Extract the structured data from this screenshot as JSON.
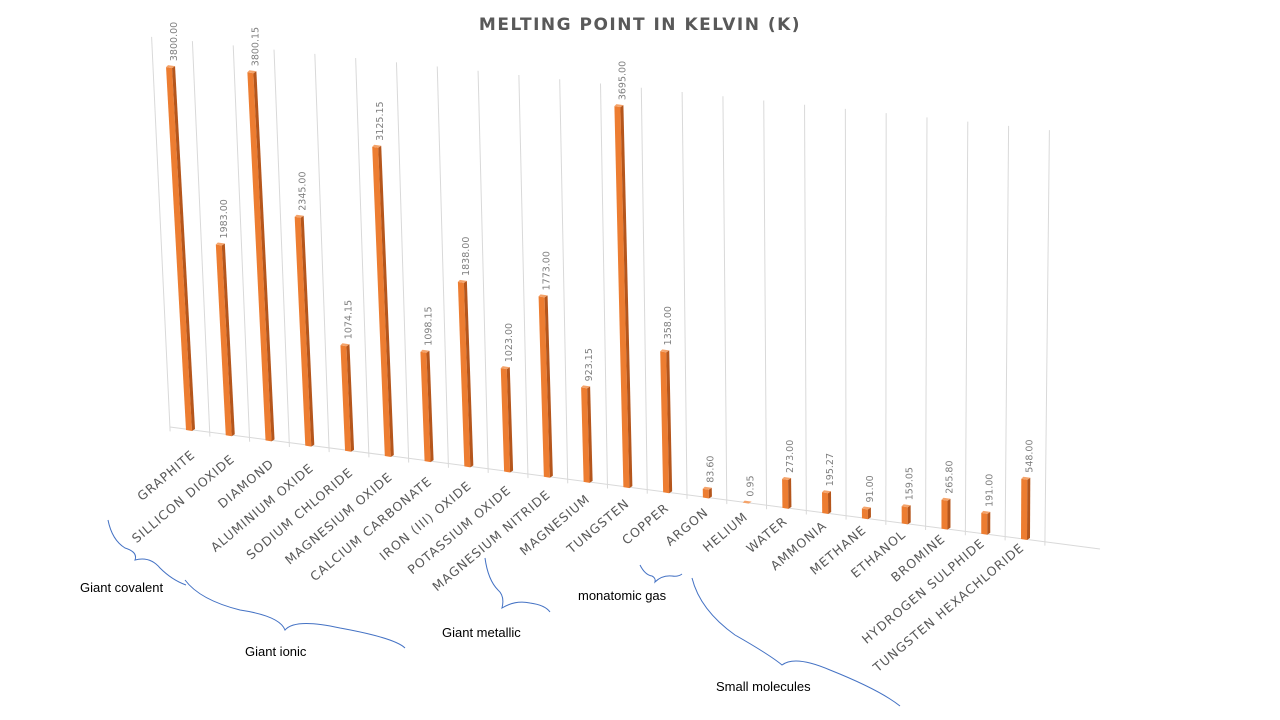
{
  "chart_data": {
    "type": "bar",
    "title": "MELTING POINT IN KELVIN (K)",
    "xlabel": "",
    "ylabel": "",
    "ylim": [
      0,
      4000
    ],
    "grid": true,
    "legend": "none",
    "series_color": "#ED7D31",
    "categories": [
      "GRAPHITE",
      "SILLICON DIOXIDE",
      "DIAMOND",
      "ALUMINIUM OXIDE",
      "SODIUM CHLORIDE",
      "MAGNESIUM OXIDE",
      "CALCIUM CARBONATE",
      "IRON (III) OXIDE",
      "POTASSIUM OXIDE",
      "MAGNESIUM NITRIDE",
      "MAGNESIUM",
      "TUNGSTEN",
      "COPPER",
      "ARGON",
      "HELIUM",
      "WATER",
      "AMMONIA",
      "METHANE",
      "ETHANOL",
      "BROMINE",
      "HYDROGEN SULPHIDE",
      "TUNGSTEN HEXACHLORIDE"
    ],
    "values": [
      3800.0,
      1983.0,
      3800.15,
      2345.0,
      1074.15,
      3125.15,
      1098.15,
      1838.0,
      1023.0,
      1773.0,
      923.15,
      3695.0,
      1358.0,
      83.6,
      0.95,
      273.0,
      195.27,
      91.0,
      159.05,
      265.8,
      191.0,
      548.0
    ],
    "data_labels": [
      "3800.00",
      "1983.00",
      "3800.15",
      "2345.00",
      "1074.15",
      "3125.15",
      "1098.15",
      "1838.00",
      "1023.00",
      "1773.00",
      "923.15",
      "3695.00",
      "1358.00",
      "83.60",
      "0.95",
      "273.00",
      "195.27",
      "91.00",
      "159.05",
      "265.80",
      "191.00",
      "548.00"
    ],
    "annotations": [
      "Giant covalent",
      "Giant ionic",
      "Giant metallic",
      "monatomic  gas",
      "Small molecules"
    ]
  }
}
